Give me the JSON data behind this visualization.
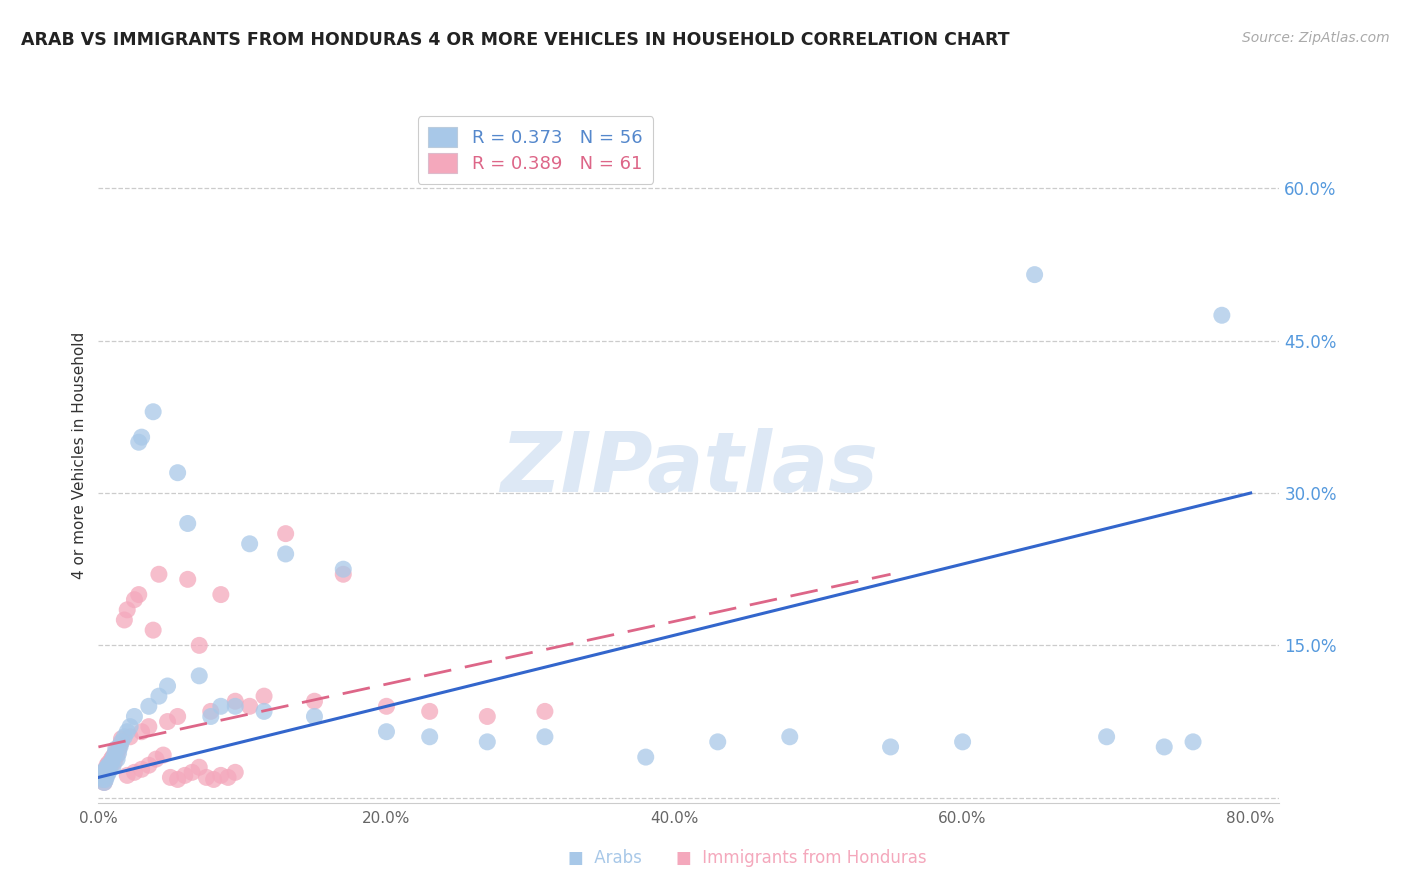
{
  "title": "ARAB VS IMMIGRANTS FROM HONDURAS 4 OR MORE VEHICLES IN HOUSEHOLD CORRELATION CHART",
  "source": "Source: ZipAtlas.com",
  "ylabel": "4 or more Vehicles in Household",
  "xlim": [
    0.0,
    0.82
  ],
  "ylim": [
    -0.005,
    0.68
  ],
  "xtick_positions": [
    0.0,
    0.1,
    0.2,
    0.3,
    0.4,
    0.5,
    0.6,
    0.7,
    0.8
  ],
  "xticklabels": [
    "0.0%",
    "",
    "20.0%",
    "",
    "40.0%",
    "",
    "60.0%",
    "",
    "80.0%"
  ],
  "yticks_right": [
    0.15,
    0.3,
    0.45,
    0.6
  ],
  "ytick_labels_right": [
    "15.0%",
    "30.0%",
    "45.0%",
    "60.0%"
  ],
  "blue_scatter_color": "#a8c8e8",
  "pink_scatter_color": "#f4a8bc",
  "blue_line_color": "#3366cc",
  "pink_line_color": "#dd6688",
  "watermark_text": "ZIPatlas",
  "watermark_color": "#dde8f5",
  "grid_color": "#cccccc",
  "title_color": "#222222",
  "source_color": "#aaaaaa",
  "right_axis_color": "#5599dd",
  "legend_entries": [
    {
      "R": "0.373",
      "N": "56",
      "color": "#5588cc"
    },
    {
      "R": "0.389",
      "N": "61",
      "color": "#dd6688"
    }
  ],
  "bottom_legend": [
    {
      "label": "Arabs",
      "color": "#a8c8e8"
    },
    {
      "label": "Immigrants from Honduras",
      "color": "#f4a8bc"
    }
  ],
  "arab_x": [
    0.002,
    0.003,
    0.003,
    0.004,
    0.004,
    0.005,
    0.005,
    0.006,
    0.006,
    0.007,
    0.007,
    0.008,
    0.009,
    0.01,
    0.01,
    0.011,
    0.012,
    0.013,
    0.014,
    0.015,
    0.016,
    0.018,
    0.02,
    0.022,
    0.025,
    0.028,
    0.03,
    0.035,
    0.038,
    0.042,
    0.048,
    0.055,
    0.062,
    0.07,
    0.078,
    0.085,
    0.095,
    0.105,
    0.115,
    0.13,
    0.15,
    0.17,
    0.2,
    0.23,
    0.27,
    0.31,
    0.38,
    0.43,
    0.48,
    0.55,
    0.6,
    0.65,
    0.7,
    0.74,
    0.76,
    0.78
  ],
  "arab_y": [
    0.02,
    0.018,
    0.025,
    0.015,
    0.022,
    0.028,
    0.018,
    0.03,
    0.022,
    0.025,
    0.032,
    0.028,
    0.035,
    0.038,
    0.03,
    0.042,
    0.048,
    0.038,
    0.044,
    0.05,
    0.055,
    0.06,
    0.065,
    0.07,
    0.08,
    0.35,
    0.355,
    0.09,
    0.38,
    0.1,
    0.11,
    0.32,
    0.27,
    0.12,
    0.08,
    0.09,
    0.09,
    0.25,
    0.085,
    0.24,
    0.08,
    0.225,
    0.065,
    0.06,
    0.055,
    0.06,
    0.04,
    0.055,
    0.06,
    0.05,
    0.055,
    0.515,
    0.06,
    0.05,
    0.055,
    0.475
  ],
  "honduran_x": [
    0.002,
    0.003,
    0.003,
    0.004,
    0.004,
    0.005,
    0.005,
    0.006,
    0.006,
    0.007,
    0.007,
    0.008,
    0.009,
    0.01,
    0.011,
    0.012,
    0.013,
    0.014,
    0.015,
    0.016,
    0.018,
    0.02,
    0.022,
    0.025,
    0.028,
    0.03,
    0.035,
    0.038,
    0.042,
    0.048,
    0.055,
    0.062,
    0.07,
    0.078,
    0.085,
    0.095,
    0.105,
    0.115,
    0.13,
    0.15,
    0.17,
    0.2,
    0.23,
    0.27,
    0.31,
    0.02,
    0.025,
    0.03,
    0.035,
    0.04,
    0.045,
    0.05,
    0.055,
    0.06,
    0.065,
    0.07,
    0.075,
    0.08,
    0.085,
    0.09,
    0.095
  ],
  "honduran_y": [
    0.022,
    0.02,
    0.018,
    0.025,
    0.015,
    0.028,
    0.02,
    0.032,
    0.024,
    0.028,
    0.034,
    0.03,
    0.038,
    0.04,
    0.035,
    0.045,
    0.042,
    0.048,
    0.052,
    0.058,
    0.175,
    0.185,
    0.06,
    0.195,
    0.2,
    0.065,
    0.07,
    0.165,
    0.22,
    0.075,
    0.08,
    0.215,
    0.15,
    0.085,
    0.2,
    0.095,
    0.09,
    0.1,
    0.26,
    0.095,
    0.22,
    0.09,
    0.085,
    0.08,
    0.085,
    0.022,
    0.025,
    0.028,
    0.032,
    0.038,
    0.042,
    0.02,
    0.018,
    0.022,
    0.025,
    0.03,
    0.02,
    0.018,
    0.022,
    0.02,
    0.025
  ]
}
